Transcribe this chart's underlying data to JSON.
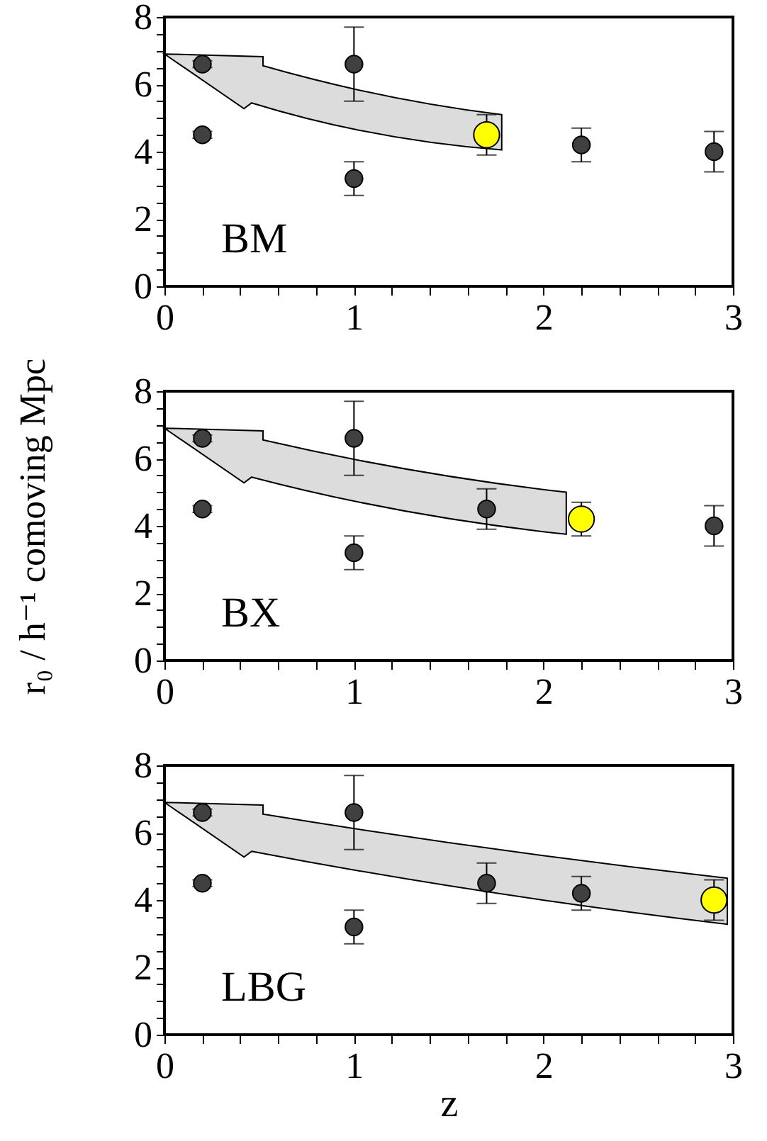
{
  "chart_data": [
    {
      "type": "scatter",
      "marker": "circle",
      "annotations": [
        "BM"
      ],
      "xlim": [
        0,
        3
      ],
      "ylim": [
        0,
        8
      ],
      "xticks": [
        0,
        {
          "value": 0.2,
          "label": null
        },
        {
          "value": 0.4,
          "label": null
        },
        {
          "value": 0.6,
          "label": null
        },
        {
          "value": 0.8,
          "label": null
        },
        1,
        {
          "value": 1.2,
          "label": null
        },
        {
          "value": 1.4,
          "label": null
        },
        {
          "value": 1.6,
          "label": null
        },
        {
          "value": 1.8,
          "label": null
        },
        2,
        {
          "value": 2.2,
          "label": null
        },
        {
          "value": 2.4,
          "label": null
        },
        {
          "value": 2.6,
          "label": null
        },
        {
          "value": 2.8,
          "label": null
        },
        3
      ],
      "yticks": [
        0,
        {
          "value": 0.5,
          "label": null
        },
        {
          "value": 1,
          "label": null
        },
        {
          "value": 1.5,
          "label": null
        },
        2,
        {
          "value": 2.5,
          "label": null
        },
        {
          "value": 3,
          "label": null
        },
        {
          "value": 3.5,
          "label": null
        },
        4,
        {
          "value": 4.5,
          "label": null
        },
        {
          "value": 5,
          "label": null
        },
        {
          "value": 5.5,
          "label": null
        },
        6,
        {
          "value": 6.5,
          "label": null
        },
        {
          "value": 7,
          "label": null
        },
        {
          "value": 7.5,
          "label": null
        },
        8
      ],
      "series": [
        {
          "color": "#404040",
          "x": [
            0.2,
            0.2,
            1.0,
            1.0,
            2.2,
            2.9
          ],
          "values": [
            6.6,
            4.5,
            6.6,
            3.2,
            4.2,
            4.0
          ],
          "errors": [
            0.1,
            0.1,
            1.1,
            0.5,
            0.5,
            0.6
          ]
        },
        {
          "color": "#ffff00",
          "x": [
            1.7
          ],
          "values": [
            4.5
          ],
          "errors": [
            0.6
          ]
        }
      ]
    },
    {
      "type": "scatter",
      "marker": "circle",
      "ylabel": "r₀ / h⁻¹ comoving Mpc",
      "annotations": [
        "BX"
      ],
      "xlim": [
        0,
        3
      ],
      "ylim": [
        0,
        8
      ],
      "xticks": [
        0,
        {
          "value": 0.2,
          "label": null
        },
        {
          "value": 0.4,
          "label": null
        },
        {
          "value": 0.6,
          "label": null
        },
        {
          "value": 0.8,
          "label": null
        },
        1,
        {
          "value": 1.2,
          "label": null
        },
        {
          "value": 1.4,
          "label": null
        },
        {
          "value": 1.6,
          "label": null
        },
        {
          "value": 1.8,
          "label": null
        },
        2,
        {
          "value": 2.2,
          "label": null
        },
        {
          "value": 2.4,
          "label": null
        },
        {
          "value": 2.6,
          "label": null
        },
        {
          "value": 2.8,
          "label": null
        },
        3
      ],
      "yticks": [
        0,
        {
          "value": 0.5,
          "label": null
        },
        {
          "value": 1,
          "label": null
        },
        {
          "value": 1.5,
          "label": null
        },
        2,
        {
          "value": 2.5,
          "label": null
        },
        {
          "value": 3,
          "label": null
        },
        {
          "value": 3.5,
          "label": null
        },
        4,
        {
          "value": 4.5,
          "label": null
        },
        {
          "value": 5,
          "label": null
        },
        {
          "value": 5.5,
          "label": null
        },
        6,
        {
          "value": 6.5,
          "label": null
        },
        {
          "value": 7,
          "label": null
        },
        {
          "value": 7.5,
          "label": null
        },
        8
      ],
      "series": [
        {
          "color": "#404040",
          "x": [
            0.2,
            0.2,
            1.0,
            1.0,
            1.7,
            2.9
          ],
          "values": [
            6.6,
            4.5,
            6.6,
            3.2,
            4.5,
            4.0
          ],
          "errors": [
            0.1,
            0.1,
            1.1,
            0.5,
            0.6,
            0.6
          ]
        },
        {
          "color": "#ffff00",
          "x": [
            2.2
          ],
          "values": [
            4.2
          ],
          "errors": [
            0.5
          ]
        }
      ]
    },
    {
      "type": "scatter",
      "marker": "circle",
      "xlabel": "z",
      "annotations": [
        "LBG"
      ],
      "xlim": [
        0,
        3
      ],
      "ylim": [
        0,
        8
      ],
      "xticks": [
        0,
        {
          "value": 0.2,
          "label": null
        },
        {
          "value": 0.4,
          "label": null
        },
        {
          "value": 0.6,
          "label": null
        },
        {
          "value": 0.8,
          "label": null
        },
        1,
        {
          "value": 1.2,
          "label": null
        },
        {
          "value": 1.4,
          "label": null
        },
        {
          "value": 1.6,
          "label": null
        },
        {
          "value": 1.8,
          "label": null
        },
        2,
        {
          "value": 2.2,
          "label": null
        },
        {
          "value": 2.4,
          "label": null
        },
        {
          "value": 2.6,
          "label": null
        },
        {
          "value": 2.8,
          "label": null
        },
        3
      ],
      "yticks": [
        0,
        {
          "value": 0.5,
          "label": null
        },
        {
          "value": 1,
          "label": null
        },
        {
          "value": 1.5,
          "label": null
        },
        2,
        {
          "value": 2.5,
          "label": null
        },
        {
          "value": 3,
          "label": null
        },
        {
          "value": 3.5,
          "label": null
        },
        4,
        {
          "value": 4.5,
          "label": null
        },
        {
          "value": 5,
          "label": null
        },
        {
          "value": 5.5,
          "label": null
        },
        6,
        {
          "value": 6.5,
          "label": null
        },
        {
          "value": 7,
          "label": null
        },
        {
          "value": 7.5,
          "label": null
        },
        8
      ],
      "series": [
        {
          "color": "#404040",
          "x": [
            0.2,
            0.2,
            1.0,
            1.0,
            1.7,
            2.2
          ],
          "values": [
            6.6,
            4.5,
            6.6,
            3.2,
            4.5,
            4.2
          ],
          "errors": [
            0.1,
            0.1,
            1.1,
            0.5,
            0.6,
            0.5
          ]
        },
        {
          "color": "#ffff00",
          "x": [
            2.9
          ],
          "values": [
            4.0
          ],
          "errors": [
            0.6
          ]
        }
      ]
    }
  ]
}
